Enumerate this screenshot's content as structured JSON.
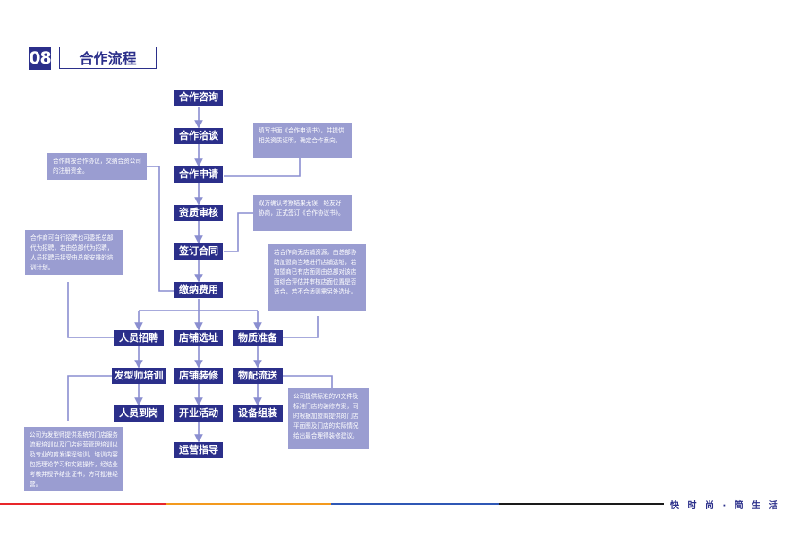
{
  "header": {
    "number": "08",
    "title": "合作流程"
  },
  "steps": {
    "consult": "合作咨询",
    "negotiate": "合作洽谈",
    "apply": "合作申请",
    "review": "资质审核",
    "contract": "签订合同",
    "pay": "缴纳费用",
    "recruit": "人员招聘",
    "site": "店铺选址",
    "materials": "物质准备",
    "training": "发型师培训",
    "decoration": "店铺装修",
    "delivery": "物配流送",
    "onboard": "人员到岗",
    "opening": "开业活动",
    "equipment": "设备组装",
    "guidance": "运营指导"
  },
  "notes": {
    "apply": "填写书面《合作申请书》，并提供相关资质证明，确定合作意向。",
    "pay": "合作商按合作协议，交纳合资公司的注册资金。",
    "contract": "双方确认考察结果无误，经友好协商，正式签订《合作协议书》。",
    "recruit": "合作商可自行招聘也可委托总部代为招聘，若由总部代为招聘，人员招聘后接受由总部安排的培训计划。",
    "site": "若合作商无店铺资源，由总部协助加盟商当地进行店铺选址，若加盟商已有店面则由总部对该店面综合评估并审核店面位置是否适合，若不合适则需另外选址。",
    "delivery": "公司提供标准的VI文件及标准门店的装修方案，同时根据加盟商提供的门店平面图及门店的实际情况给出最合理得装修建议。",
    "training": "公司为发型师提供系统的门店服务流程培训以及门店经营管理培训以及专业的剪发课程培训，培训内容包括理论学习和实践操作，经结业考核并授予结业证书，方可批准经营。"
  },
  "footer": {
    "slogan": "快 时 尚 · 简 生 活"
  },
  "colors": {
    "primary": "#2b2f8a",
    "note": "#9a9dd1",
    "connector": "#8a8ed0",
    "footer_red": "#e8262a",
    "footer_orange": "#f39a1e",
    "footer_blue": "#2f57b5",
    "footer_black": "#1a1a1a"
  }
}
